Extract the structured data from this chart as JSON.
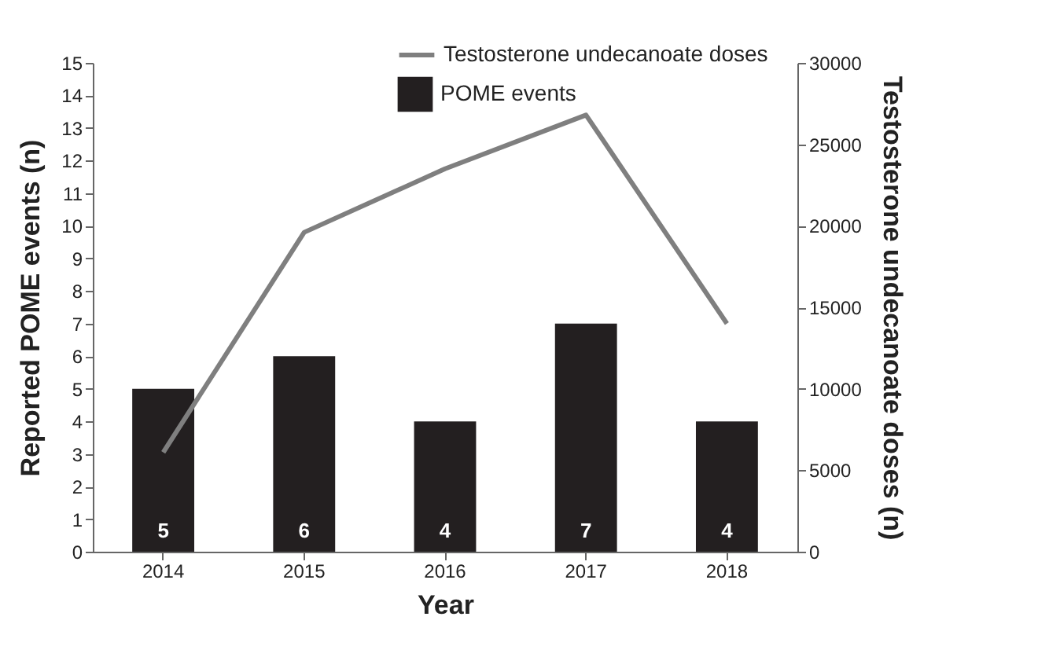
{
  "chart_data": {
    "type": "bar",
    "xlabel": "Year",
    "ylabel": "Reported POME events (n)",
    "y2label": "Testosterone undecanoate doses (n)",
    "categories": [
      "2014",
      "2015",
      "2016",
      "2017",
      "2018"
    ],
    "series": [
      {
        "name": "POME events",
        "color": "#231f20",
        "values": [
          5,
          6,
          4,
          7,
          4
        ],
        "value_labels": [
          "5",
          "6",
          "4",
          "7",
          "4"
        ]
      },
      {
        "name": "Testosterone undecanoate doses",
        "type": "line",
        "axis": "y2",
        "color": "#7f7f7f",
        "values": [
          6100,
          19600,
          23500,
          26800,
          14000
        ]
      }
    ],
    "legend": "top right",
    "ylim": [
      0,
      15
    ],
    "yticks": [
      0,
      1,
      2,
      3,
      4,
      5,
      6,
      7,
      8,
      9,
      10,
      11,
      12,
      13,
      14,
      15
    ],
    "y2lim": [
      0,
      30000
    ],
    "y2ticks": [
      0,
      5000,
      10000,
      15000,
      20000,
      25000,
      30000
    ]
  }
}
